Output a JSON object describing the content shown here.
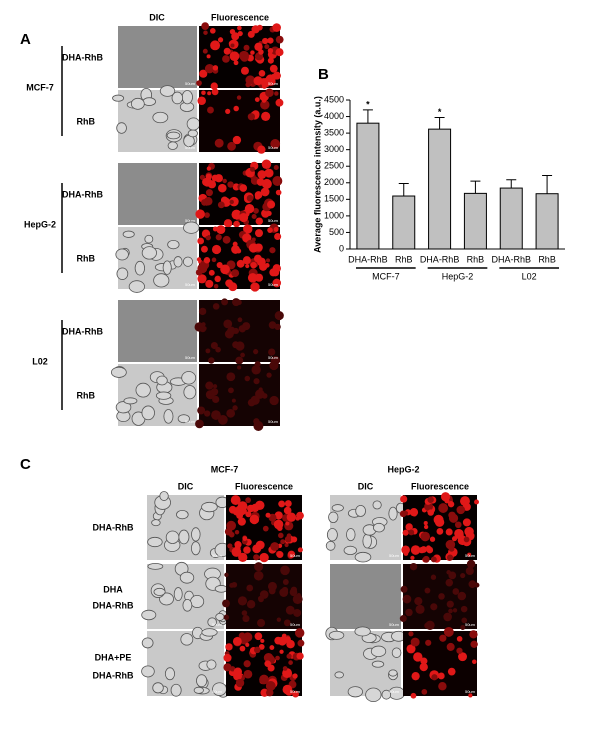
{
  "panel_a": {
    "label": "A",
    "columns": [
      "DIC",
      "Fluorescence"
    ],
    "groups": [
      {
        "name": "MCF-7",
        "rows": [
          "DHA-RhB",
          "RhB"
        ]
      },
      {
        "name": "HepG-2",
        "rows": [
          "DHA-RhB",
          "RhB"
        ]
      },
      {
        "name": "L02",
        "rows": [
          "DHA-RhB",
          "RhB"
        ]
      }
    ]
  },
  "scale_bar": "50um",
  "chart_data": {
    "type": "bar",
    "panel_label": "B",
    "y_label": "Average fluorescence intensity (a.u.)",
    "categories": [
      "DHA-RhB",
      "RhB",
      "DHA-RhB",
      "RhB",
      "DHA-RhB",
      "RhB"
    ],
    "groups": [
      "MCF-7",
      "HepG-2",
      "L02"
    ],
    "values": [
      3800,
      1600,
      3620,
      1680,
      1840,
      1670
    ],
    "errors": [
      400,
      380,
      350,
      370,
      250,
      550
    ],
    "annotations": [
      "*",
      null,
      "*",
      null,
      null,
      null
    ],
    "color": "#c0c0c0",
    "ylim": [
      0,
      4500
    ],
    "yticks": [
      0,
      500,
      1000,
      1500,
      2000,
      2500,
      3000,
      3500,
      4000,
      4500
    ]
  },
  "panel_c": {
    "label": "C",
    "blocks": [
      {
        "name": "MCF-7",
        "columns": [
          "DIC",
          "Fluorescence"
        ]
      },
      {
        "name": "HepG-2",
        "columns": [
          "DIC",
          "Fluorescence"
        ]
      }
    ],
    "rows": [
      [
        "DHA-RhB"
      ],
      [
        "DHA",
        "DHA-RhB"
      ],
      [
        "DHA+PE",
        "DHA-RhB"
      ]
    ]
  }
}
